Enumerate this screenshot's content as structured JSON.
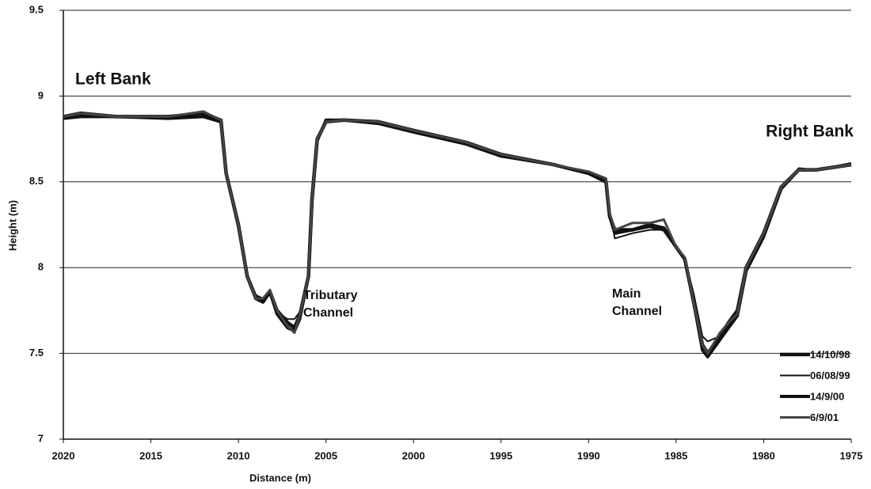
{
  "chart_data": {
    "type": "line",
    "xlabel": "Distance (m)",
    "ylabel": "Height (m)",
    "annotations": [
      [
        "Left Bank"
      ],
      [
        "Right Bank"
      ],
      [
        "Tributary",
        "Channel"
      ],
      [
        "Main",
        "Channel"
      ]
    ],
    "x": [
      2020,
      2019,
      2017,
      2014,
      2012,
      2011,
      2010.7,
      2010,
      2009.5,
      2009,
      2008.6,
      2008.2,
      2007.8,
      2007.2,
      2006.8,
      2006.5,
      2006,
      2005.8,
      2005.5,
      2005,
      2004,
      2002,
      2000,
      1997,
      1995,
      1992,
      1990,
      1989,
      1988.8,
      1988.5,
      1987.5,
      1986.5,
      1985.7,
      1985,
      1984.5,
      1984,
      1983.5,
      1983.2,
      1982.5,
      1982,
      1981.5,
      1981,
      1980,
      1979,
      1978,
      1977,
      1975
    ],
    "series": [
      {
        "name": "14/10/98",
        "color": "#111111",
        "width": 4.5,
        "values": [
          8.88,
          8.9,
          8.88,
          8.88,
          8.9,
          8.86,
          8.55,
          8.25,
          7.95,
          7.82,
          7.8,
          7.86,
          7.75,
          7.68,
          7.65,
          7.72,
          7.95,
          8.4,
          8.75,
          8.85,
          8.86,
          8.85,
          8.8,
          8.73,
          8.66,
          8.6,
          8.55,
          8.5,
          8.3,
          8.22,
          8.22,
          8.25,
          8.23,
          8.12,
          8.05,
          7.8,
          7.55,
          7.5,
          7.6,
          7.68,
          7.75,
          8.0,
          8.2,
          8.47,
          8.57,
          8.57,
          8.6
        ]
      },
      {
        "name": "06/08/99",
        "color": "#111111",
        "width": 2,
        "values": [
          8.88,
          8.89,
          8.88,
          8.88,
          8.88,
          8.86,
          8.55,
          8.25,
          7.96,
          7.84,
          7.82,
          7.84,
          7.74,
          7.7,
          7.7,
          7.74,
          7.95,
          8.4,
          8.75,
          8.86,
          8.86,
          8.85,
          8.8,
          8.73,
          8.66,
          8.6,
          8.56,
          8.5,
          8.32,
          8.17,
          8.2,
          8.22,
          8.22,
          8.12,
          8.05,
          7.85,
          7.6,
          7.57,
          7.6,
          7.65,
          7.72,
          8.0,
          8.2,
          8.47,
          8.58,
          8.57,
          8.61
        ]
      },
      {
        "name": "14/9/00",
        "color": "#111111",
        "width": 4,
        "values": [
          8.87,
          8.88,
          8.88,
          8.87,
          8.88,
          8.85,
          8.55,
          8.24,
          7.95,
          7.83,
          7.8,
          7.86,
          7.73,
          7.65,
          7.63,
          7.7,
          7.95,
          8.38,
          8.74,
          8.86,
          8.86,
          8.84,
          8.79,
          8.72,
          8.65,
          8.6,
          8.55,
          8.5,
          8.3,
          8.2,
          8.22,
          8.24,
          8.22,
          8.12,
          8.05,
          7.8,
          7.52,
          7.48,
          7.58,
          7.65,
          7.72,
          7.98,
          8.18,
          8.46,
          8.57,
          8.57,
          8.6
        ]
      },
      {
        "name": "6/9/01",
        "color": "#444444",
        "width": 3,
        "values": [
          8.88,
          8.9,
          8.88,
          8.88,
          8.91,
          8.86,
          8.55,
          8.25,
          7.95,
          7.82,
          7.82,
          7.87,
          7.75,
          7.66,
          7.62,
          7.72,
          7.95,
          8.4,
          8.75,
          8.85,
          8.86,
          8.85,
          8.8,
          8.73,
          8.66,
          8.6,
          8.56,
          8.52,
          8.32,
          8.22,
          8.26,
          8.26,
          8.28,
          8.12,
          8.06,
          7.8,
          7.55,
          7.5,
          7.62,
          7.68,
          7.73,
          8.0,
          8.2,
          8.47,
          8.57,
          8.57,
          8.6
        ]
      }
    ],
    "xlim": [
      2020,
      1975
    ],
    "xticks": [
      2020,
      2015,
      2010,
      2005,
      2000,
      1995,
      1990,
      1985,
      1980,
      1975
    ],
    "ylim": [
      7,
      9.5
    ],
    "yticks": [
      7,
      7.5,
      8,
      8.5,
      9,
      9.5
    ],
    "grid": true,
    "legend": "lower right"
  }
}
